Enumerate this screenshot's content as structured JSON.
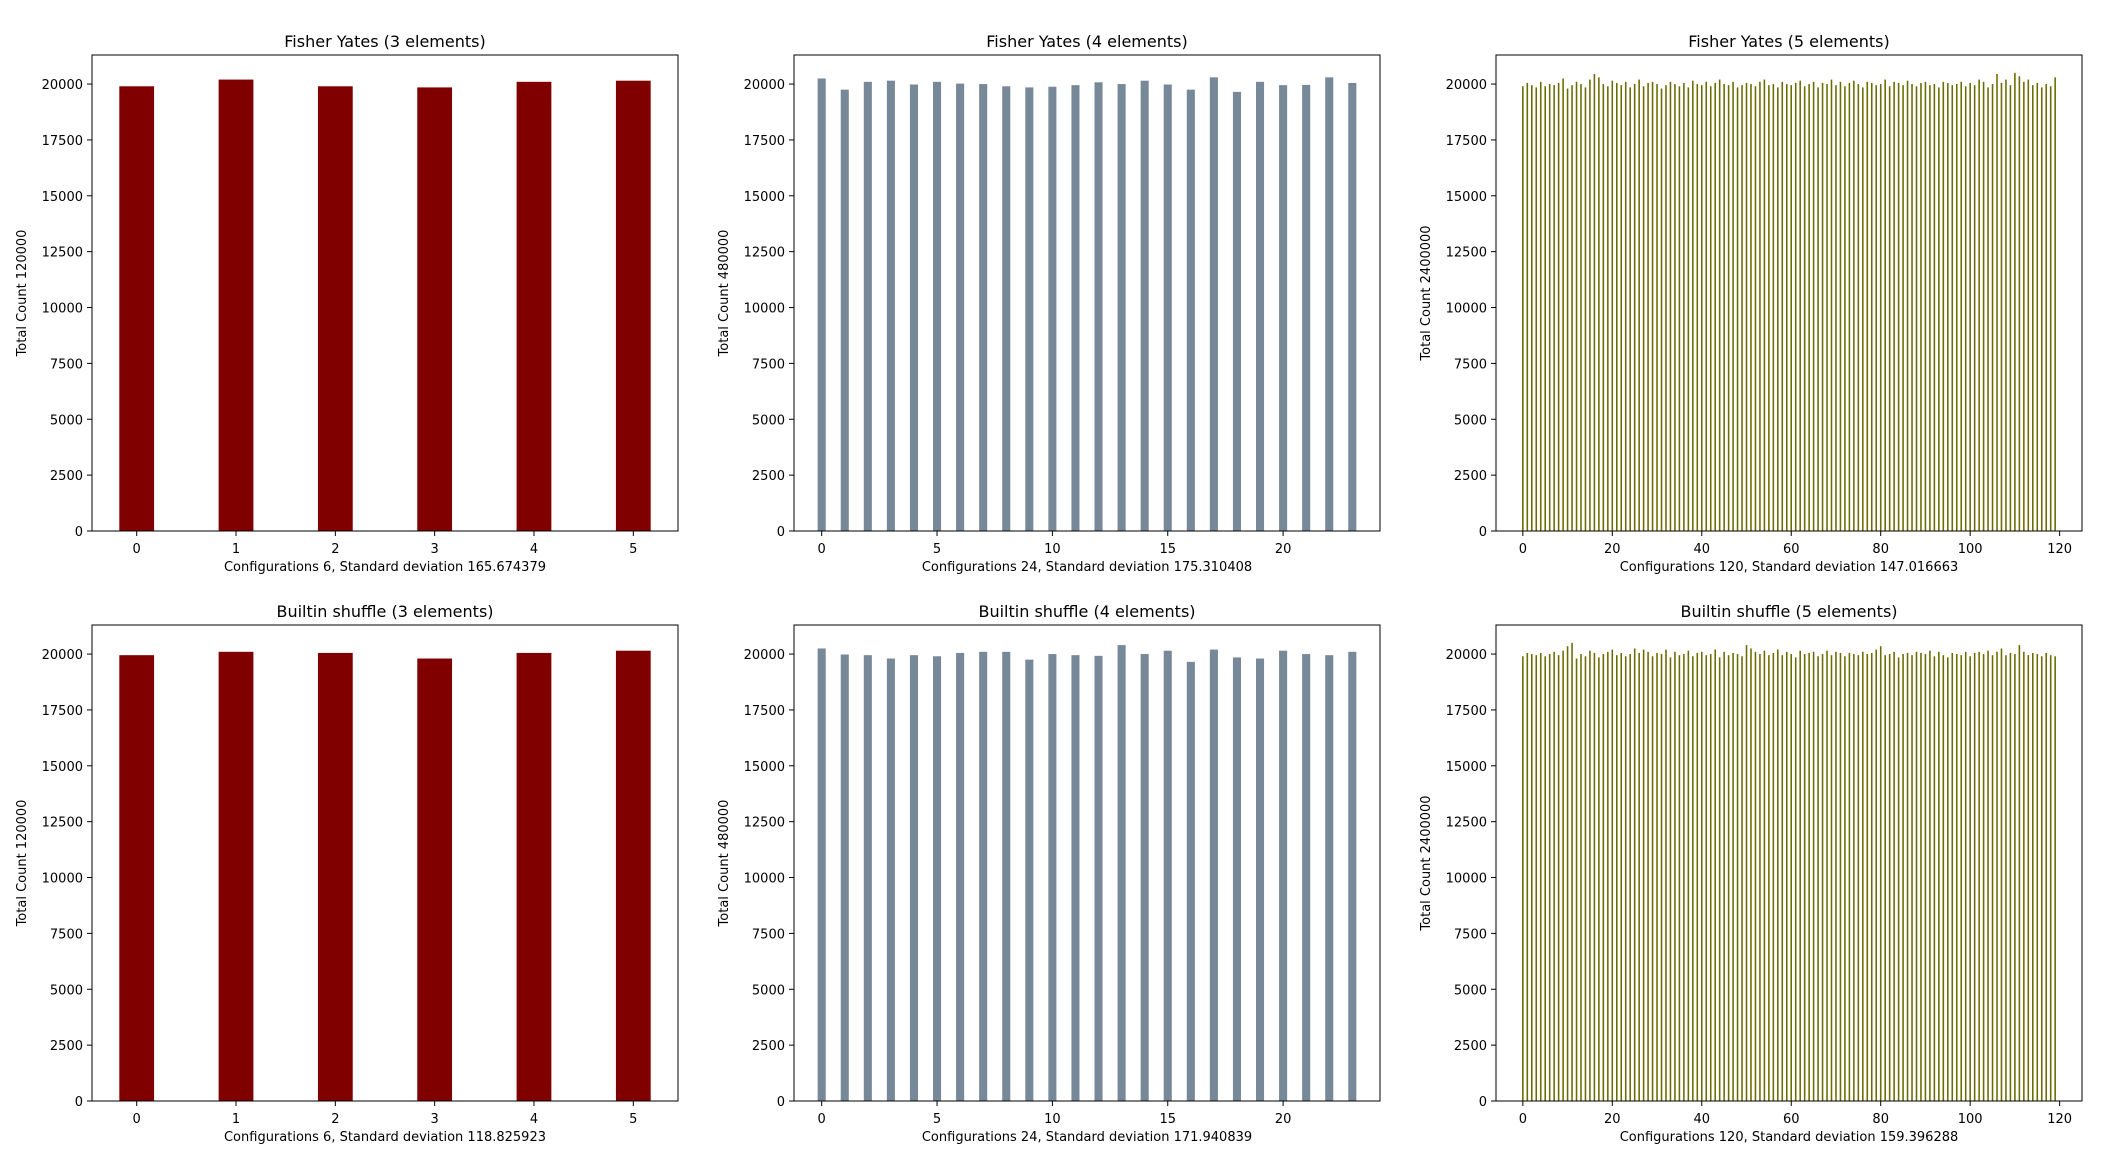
{
  "chart_data": [
    {
      "type": "bar",
      "title": "Fisher Yates (3 elements)",
      "xlabel": "Configurations 6, Standard deviation 165.674379",
      "ylabel": "Total Count 120000",
      "color": "#800000",
      "bar_width": 0.35,
      "xlim": [
        -0.45,
        5.45
      ],
      "ylim": [
        0,
        21300
      ],
      "xticks": [
        0,
        1,
        2,
        3,
        4,
        5
      ],
      "yticks": [
        0,
        2500,
        5000,
        7500,
        10000,
        12500,
        15000,
        17500,
        20000
      ],
      "x": [
        0,
        1,
        2,
        3,
        4,
        5
      ],
      "values": [
        19900,
        20200,
        19900,
        19850,
        20100,
        20150
      ]
    },
    {
      "type": "bar",
      "title": "Fisher Yates (4 elements)",
      "xlabel": "Configurations 24, Standard deviation 175.310408",
      "ylabel": "Total Count 480000",
      "color": "#778899",
      "bar_width": 0.35,
      "xlim": [
        -1.2,
        24.2
      ],
      "ylim": [
        0,
        21300
      ],
      "xticks": [
        0,
        5,
        10,
        15,
        20
      ],
      "yticks": [
        0,
        2500,
        5000,
        7500,
        10000,
        12500,
        15000,
        17500,
        20000
      ],
      "x": [
        0,
        1,
        2,
        3,
        4,
        5,
        6,
        7,
        8,
        9,
        10,
        11,
        12,
        13,
        14,
        15,
        16,
        17,
        18,
        19,
        20,
        21,
        22,
        23
      ],
      "values": [
        20250,
        19750,
        20100,
        20150,
        19980,
        20100,
        20020,
        20000,
        19900,
        19850,
        19880,
        19950,
        20080,
        20000,
        20150,
        19980,
        19750,
        20300,
        19650,
        20100,
        19950,
        19960,
        20300,
        20050
      ]
    },
    {
      "type": "bar",
      "title": "Fisher Yates (5 elements)",
      "xlabel": "Configurations 120, Standard deviation 147.016663",
      "ylabel": "Total Count 2400000",
      "color": "#6b6b00",
      "bar_width": 0.35,
      "xlim": [
        -6,
        125
      ],
      "ylim": [
        0,
        21300
      ],
      "xticks": [
        0,
        20,
        40,
        60,
        80,
        100,
        120
      ],
      "yticks": [
        0,
        2500,
        5000,
        7500,
        10000,
        12500,
        15000,
        17500,
        20000
      ],
      "x": [
        0,
        1,
        2,
        3,
        4,
        5,
        6,
        7,
        8,
        9,
        10,
        11,
        12,
        13,
        14,
        15,
        16,
        17,
        18,
        19,
        20,
        21,
        22,
        23,
        24,
        25,
        26,
        27,
        28,
        29,
        30,
        31,
        32,
        33,
        34,
        35,
        36,
        37,
        38,
        39,
        40,
        41,
        42,
        43,
        44,
        45,
        46,
        47,
        48,
        49,
        50,
        51,
        52,
        53,
        54,
        55,
        56,
        57,
        58,
        59,
        60,
        61,
        62,
        63,
        64,
        65,
        66,
        67,
        68,
        69,
        70,
        71,
        72,
        73,
        74,
        75,
        76,
        77,
        78,
        79,
        80,
        81,
        82,
        83,
        84,
        85,
        86,
        87,
        88,
        89,
        90,
        91,
        92,
        93,
        94,
        95,
        96,
        97,
        98,
        99,
        100,
        101,
        102,
        103,
        104,
        105,
        106,
        107,
        108,
        109,
        110,
        111,
        112,
        113,
        114,
        115,
        116,
        117,
        118,
        119
      ],
      "values": [
        19900,
        20050,
        19950,
        19850,
        20100,
        19900,
        20000,
        19950,
        20050,
        20250,
        19800,
        19950,
        20100,
        20000,
        19850,
        20200,
        20450,
        20300,
        20000,
        19900,
        20150,
        20050,
        19950,
        20100,
        19850,
        20000,
        20200,
        19900,
        20050,
        20100,
        20000,
        19800,
        19950,
        20100,
        20000,
        19900,
        20050,
        19850,
        20150,
        20000,
        19950,
        20100,
        19900,
        20050,
        20200,
        20000,
        19950,
        20100,
        19850,
        19950,
        20050,
        20000,
        19900,
        20100,
        20200,
        19950,
        20000,
        19850,
        20100,
        20000,
        19950,
        20050,
        20150,
        19900,
        20000,
        20100,
        19850,
        20050,
        20000,
        20200,
        19950,
        20100,
        19900,
        20050,
        20150,
        20000,
        19850,
        20100,
        20050,
        19950,
        20000,
        20200,
        19900,
        20100,
        20050,
        19950,
        20150,
        20000,
        19900,
        20050,
        20100,
        19950,
        20000,
        19850,
        20100,
        20050,
        19950,
        20000,
        20100,
        19900,
        20050,
        19950,
        20200,
        20100,
        19850,
        20000,
        20450,
        20050,
        20200,
        19950,
        20500,
        20350,
        20100,
        20200,
        19950,
        20050,
        19850,
        20000,
        19900,
        20300
      ]
    },
    {
      "type": "bar",
      "title": "Builtin shuffle (3 elements)",
      "xlabel": "Configurations 6, Standard deviation 118.825923",
      "ylabel": "Total Count 120000",
      "color": "#800000",
      "bar_width": 0.35,
      "xlim": [
        -0.45,
        5.45
      ],
      "ylim": [
        0,
        21300
      ],
      "xticks": [
        0,
        1,
        2,
        3,
        4,
        5
      ],
      "yticks": [
        0,
        2500,
        5000,
        7500,
        10000,
        12500,
        15000,
        17500,
        20000
      ],
      "x": [
        0,
        1,
        2,
        3,
        4,
        5
      ],
      "values": [
        19950,
        20100,
        20050,
        19800,
        20050,
        20150
      ]
    },
    {
      "type": "bar",
      "title": "Builtin shuffle (4 elements)",
      "xlabel": "Configurations 24, Standard deviation 171.940839",
      "ylabel": "Total Count 480000",
      "color": "#778899",
      "bar_width": 0.35,
      "xlim": [
        -1.2,
        24.2
      ],
      "ylim": [
        0,
        21300
      ],
      "xticks": [
        0,
        5,
        10,
        15,
        20
      ],
      "yticks": [
        0,
        2500,
        5000,
        7500,
        10000,
        12500,
        15000,
        17500,
        20000
      ],
      "x": [
        0,
        1,
        2,
        3,
        4,
        5,
        6,
        7,
        8,
        9,
        10,
        11,
        12,
        13,
        14,
        15,
        16,
        17,
        18,
        19,
        20,
        21,
        22,
        23
      ],
      "values": [
        20250,
        19980,
        19950,
        19800,
        19950,
        19900,
        20050,
        20100,
        20100,
        19750,
        20000,
        19950,
        19920,
        20400,
        20000,
        20150,
        19650,
        20200,
        19850,
        19800,
        20150,
        20000,
        19950,
        20100
      ]
    },
    {
      "type": "bar",
      "title": "Builtin shuffle (5 elements)",
      "xlabel": "Configurations 120, Standard deviation 159.396288",
      "ylabel": "Total Count 2400000",
      "color": "#6b6b00",
      "bar_width": 0.35,
      "xlim": [
        -6,
        125
      ],
      "ylim": [
        0,
        21300
      ],
      "xticks": [
        0,
        20,
        40,
        60,
        80,
        100,
        120
      ],
      "yticks": [
        0,
        2500,
        5000,
        7500,
        10000,
        12500,
        15000,
        17500,
        20000
      ],
      "x": [
        0,
        1,
        2,
        3,
        4,
        5,
        6,
        7,
        8,
        9,
        10,
        11,
        12,
        13,
        14,
        15,
        16,
        17,
        18,
        19,
        20,
        21,
        22,
        23,
        24,
        25,
        26,
        27,
        28,
        29,
        30,
        31,
        32,
        33,
        34,
        35,
        36,
        37,
        38,
        39,
        40,
        41,
        42,
        43,
        44,
        45,
        46,
        47,
        48,
        49,
        50,
        51,
        52,
        53,
        54,
        55,
        56,
        57,
        58,
        59,
        60,
        61,
        62,
        63,
        64,
        65,
        66,
        67,
        68,
        69,
        70,
        71,
        72,
        73,
        74,
        75,
        76,
        77,
        78,
        79,
        80,
        81,
        82,
        83,
        84,
        85,
        86,
        87,
        88,
        89,
        90,
        91,
        92,
        93,
        94,
        95,
        96,
        97,
        98,
        99,
        100,
        101,
        102,
        103,
        104,
        105,
        106,
        107,
        108,
        109,
        110,
        111,
        112,
        113,
        114,
        115,
        116,
        117,
        118,
        119
      ],
      "values": [
        19900,
        20050,
        20000,
        19950,
        20050,
        19900,
        20000,
        20100,
        19950,
        20150,
        20350,
        20500,
        19800,
        20000,
        19900,
        20150,
        20050,
        19850,
        20000,
        20100,
        20200,
        19950,
        20050,
        19900,
        20000,
        20250,
        20050,
        20200,
        20100,
        19900,
        20050,
        20000,
        20200,
        19850,
        20100,
        19950,
        20000,
        20150,
        19900,
        20050,
        20100,
        19950,
        20000,
        20200,
        19850,
        20100,
        19950,
        20050,
        20000,
        19900,
        20400,
        20250,
        20100,
        20000,
        20150,
        19950,
        20050,
        20200,
        19950,
        20100,
        20000,
        19850,
        20150,
        20000,
        20050,
        20100,
        19900,
        20000,
        20150,
        19950,
        20100,
        20050,
        19900,
        20050,
        20000,
        19950,
        20100,
        20000,
        20050,
        20200,
        20350,
        19950,
        20000,
        20100,
        19850,
        20000,
        20050,
        19950,
        20100,
        20050,
        20000,
        20150,
        19900,
        20100,
        19950,
        19850,
        20050,
        20000,
        19950,
        20100,
        19900,
        20050,
        20100,
        20000,
        20150,
        19950,
        20100,
        20250,
        19950,
        20050,
        20000,
        20400,
        20100,
        19950,
        20050,
        20000,
        19900,
        20050,
        19950,
        19900
      ]
    }
  ]
}
